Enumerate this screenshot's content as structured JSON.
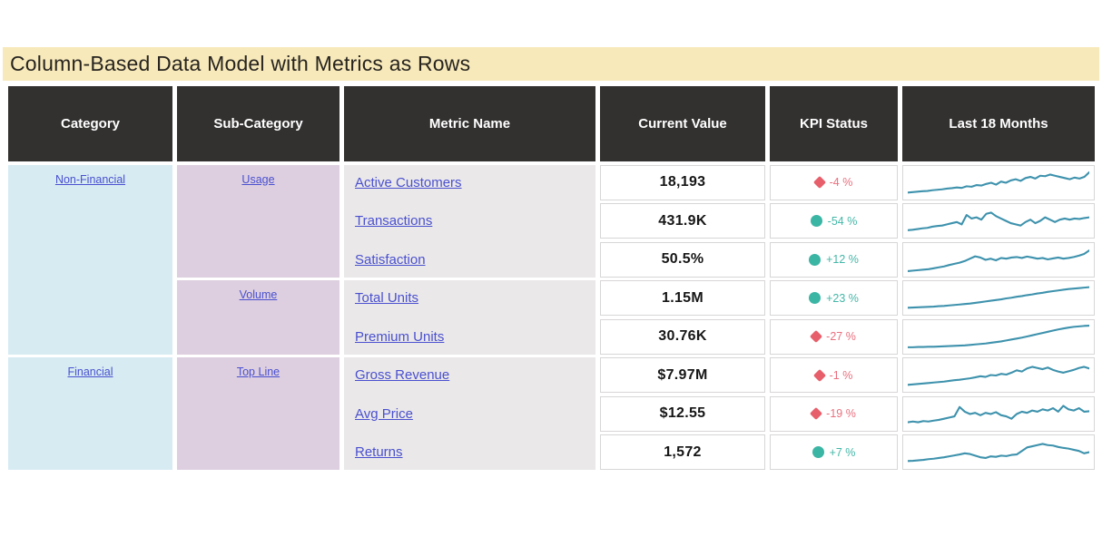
{
  "title": "Column-Based Data Model with Metrics as Rows",
  "colors": {
    "title_bg": "#f7e9ba",
    "header_bg": "#333130",
    "category_bg": "#d6ebf2",
    "subcategory_bg": "#ddcfdf",
    "metric_bg": "#eae8e8",
    "link": "#4a50d0",
    "kpi_red": "#e75f6b",
    "kpi_teal": "#3bb5a4",
    "sparkline": "#3e92ad"
  },
  "table": {
    "headers": [
      "Category",
      "Sub-Category",
      "Metric Name",
      "Current Value",
      "KPI Status",
      "Last 18 Months"
    ],
    "category_groups": [
      {
        "label": "Non-Financial",
        "rows": 5
      },
      {
        "label": "Financial",
        "rows": 3
      }
    ],
    "subcategory_groups": [
      {
        "label": "Usage",
        "rows": 3
      },
      {
        "label": "Volume",
        "rows": 2
      },
      {
        "label": "Top Line",
        "rows": 3
      }
    ],
    "rows": [
      {
        "metric": "Active Customers",
        "value": "18,193",
        "kpi": {
          "shape": "diamond",
          "tone": "red",
          "label": "-4 %"
        },
        "spark": [
          0.08,
          0.1,
          0.12,
          0.14,
          0.15,
          0.18,
          0.2,
          0.22,
          0.25,
          0.27,
          0.3,
          0.28,
          0.35,
          0.33,
          0.4,
          0.38,
          0.45,
          0.5,
          0.42,
          0.55,
          0.5,
          0.6,
          0.65,
          0.58,
          0.7,
          0.75,
          0.68,
          0.8,
          0.78,
          0.85,
          0.8,
          0.75,
          0.7,
          0.65,
          0.72,
          0.68,
          0.75,
          0.95
        ]
      },
      {
        "metric": "Transactions",
        "value": "431.9K",
        "kpi": {
          "shape": "circle",
          "tone": "teal",
          "label": "-54 %"
        },
        "spark": [
          0.1,
          0.12,
          0.15,
          0.18,
          0.2,
          0.25,
          0.28,
          0.3,
          0.35,
          0.4,
          0.45,
          0.35,
          0.75,
          0.6,
          0.65,
          0.55,
          0.8,
          0.85,
          0.7,
          0.6,
          0.5,
          0.4,
          0.35,
          0.3,
          0.45,
          0.55,
          0.4,
          0.5,
          0.65,
          0.55,
          0.45,
          0.55,
          0.6,
          0.55,
          0.6,
          0.58,
          0.62,
          0.65
        ]
      },
      {
        "metric": "Satisfaction",
        "value": "50.5%",
        "kpi": {
          "shape": "circle",
          "tone": "teal",
          "label": "+12 %"
        },
        "spark": [
          0.02,
          0.04,
          0.06,
          0.08,
          0.1,
          0.14,
          0.18,
          0.22,
          0.28,
          0.33,
          0.38,
          0.45,
          0.55,
          0.65,
          0.6,
          0.5,
          0.55,
          0.48,
          0.58,
          0.55,
          0.6,
          0.62,
          0.58,
          0.64,
          0.6,
          0.55,
          0.58,
          0.52,
          0.56,
          0.6,
          0.55,
          0.58,
          0.62,
          0.68,
          0.75,
          0.9
        ]
      },
      {
        "metric": "Total Units",
        "value": "1.15M",
        "kpi": {
          "shape": "circle",
          "tone": "teal",
          "label": "+23 %"
        },
        "spark": [
          0.08,
          0.09,
          0.1,
          0.11,
          0.12,
          0.13,
          0.15,
          0.16,
          0.18,
          0.2,
          0.22,
          0.24,
          0.26,
          0.29,
          0.32,
          0.35,
          0.38,
          0.41,
          0.44,
          0.48,
          0.51,
          0.55,
          0.58,
          0.62,
          0.65,
          0.69,
          0.72,
          0.76,
          0.79,
          0.82,
          0.85,
          0.88,
          0.9,
          0.92,
          0.94,
          0.96
        ]
      },
      {
        "metric": "Premium Units",
        "value": "30.76K",
        "kpi": {
          "shape": "diamond",
          "tone": "red",
          "label": "-27 %"
        },
        "spark": [
          0.06,
          0.06,
          0.07,
          0.07,
          0.08,
          0.08,
          0.09,
          0.1,
          0.11,
          0.12,
          0.13,
          0.14,
          0.16,
          0.18,
          0.2,
          0.22,
          0.25,
          0.28,
          0.31,
          0.35,
          0.39,
          0.43,
          0.47,
          0.52,
          0.57,
          0.62,
          0.67,
          0.72,
          0.77,
          0.82,
          0.86,
          0.9,
          0.93,
          0.95,
          0.97,
          0.98
        ]
      },
      {
        "metric": "Gross Revenue",
        "value": "$7.97M",
        "kpi": {
          "shape": "diamond",
          "tone": "red",
          "label": "-1 %"
        },
        "spark": [
          0.08,
          0.1,
          0.12,
          0.14,
          0.16,
          0.18,
          0.2,
          0.22,
          0.25,
          0.28,
          0.3,
          0.33,
          0.36,
          0.4,
          0.45,
          0.42,
          0.5,
          0.48,
          0.55,
          0.52,
          0.6,
          0.7,
          0.65,
          0.78,
          0.85,
          0.8,
          0.75,
          0.82,
          0.72,
          0.65,
          0.6,
          0.66,
          0.72,
          0.8,
          0.85,
          0.78
        ]
      },
      {
        "metric": "Avg Price",
        "value": "$12.55",
        "kpi": {
          "shape": "diamond",
          "tone": "red",
          "label": "-19 %"
        },
        "spark": [
          0.15,
          0.18,
          0.15,
          0.2,
          0.18,
          0.22,
          0.25,
          0.3,
          0.35,
          0.4,
          0.8,
          0.6,
          0.5,
          0.55,
          0.45,
          0.55,
          0.5,
          0.58,
          0.45,
          0.4,
          0.3,
          0.5,
          0.6,
          0.55,
          0.65,
          0.6,
          0.7,
          0.65,
          0.75,
          0.6,
          0.85,
          0.7,
          0.65,
          0.75,
          0.6,
          0.62
        ]
      },
      {
        "metric": "Returns",
        "value": "1,572",
        "kpi": {
          "shape": "circle",
          "tone": "teal",
          "label": "+7 %"
        },
        "spark": [
          0.12,
          0.13,
          0.15,
          0.17,
          0.2,
          0.22,
          0.25,
          0.28,
          0.32,
          0.36,
          0.4,
          0.45,
          0.42,
          0.35,
          0.28,
          0.25,
          0.32,
          0.3,
          0.35,
          0.33,
          0.38,
          0.4,
          0.55,
          0.7,
          0.75,
          0.8,
          0.85,
          0.8,
          0.78,
          0.72,
          0.68,
          0.65,
          0.6,
          0.55,
          0.45,
          0.5
        ]
      }
    ]
  }
}
